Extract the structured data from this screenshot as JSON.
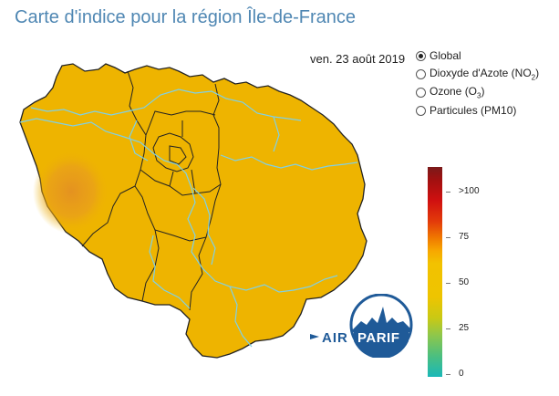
{
  "header": {
    "title": "Carte d'indice pour la région Île-de-France"
  },
  "date": "ven. 23 août 2019",
  "pollutants": [
    {
      "label": "Global",
      "sub": "",
      "checked": true
    },
    {
      "label": "Dioxyde d'Azote (NO",
      "sub": "2",
      "suffix": ")",
      "checked": false
    },
    {
      "label": "Ozone (O",
      "sub": "3",
      "suffix": ")",
      "checked": false
    },
    {
      "label": "Particules (PM10)",
      "sub": "",
      "suffix": "",
      "checked": false
    }
  ],
  "scale": {
    "ticks": [
      {
        "label": ">100",
        "value": 100
      },
      {
        "label": "75",
        "value": 75
      },
      {
        "label": "50",
        "value": 50
      },
      {
        "label": "25",
        "value": 25
      },
      {
        "label": "0",
        "value": 0
      }
    ],
    "colors": {
      "map_fill": "#eeb400",
      "hotspot": "#e79a1c",
      "border": "#222222",
      "river": "#7fd0e6"
    }
  },
  "logo": {
    "left": "AIR",
    "right": "PARIF"
  }
}
